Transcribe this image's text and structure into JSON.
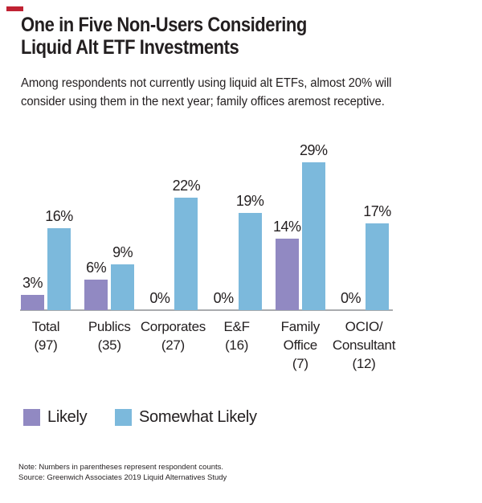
{
  "accent_color": "#c02233",
  "text_color": "#231f20",
  "header": {
    "title": "One in Five Non-Users Considering\nLiquid Alt ETF Investments",
    "subtitle": "Among respondents not currently using liquid alt ETFs, almost 20% will\nconsider using them in the next year; family offices aremost receptive."
  },
  "chart_data": {
    "type": "bar",
    "title": "One in Five Non-Users Considering Liquid Alt ETF Investments",
    "categories": [
      [
        "Total",
        "(97)"
      ],
      [
        "Publics",
        "(35)"
      ],
      [
        "Corporates",
        "(27)"
      ],
      [
        "E&F",
        "(16)"
      ],
      [
        "Family",
        "Office",
        "(7)"
      ],
      [
        "OCIO/",
        "Consultant",
        "(12)"
      ]
    ],
    "series": [
      {
        "name": "Likely",
        "color": "#9189c2",
        "values": [
          3,
          6,
          0,
          0,
          14,
          0
        ]
      },
      {
        "name": "Somewhat Likely",
        "color": "#7cb9dc",
        "values": [
          16,
          9,
          22,
          19,
          29,
          17
        ]
      }
    ],
    "value_suffix": "%",
    "value_labels": "above each bar; 0% shown at baseline where bar is absent",
    "xlabel": "",
    "ylabel": "",
    "ylim": [
      0,
      30
    ],
    "grid": false,
    "y_axis_shown": false,
    "axis_color": "#a9abae",
    "legend_position": "bottom-left"
  },
  "legend": {
    "items": [
      {
        "label": "Likely",
        "color": "#9189c2"
      },
      {
        "label": "Somewhat Likely",
        "color": "#7cb9dc"
      }
    ]
  },
  "footnotes": {
    "note": "Note: Numbers in parentheses represent respondent counts.",
    "source": "Source: Greenwich Associates 2019 Liquid Alternatives Study"
  }
}
